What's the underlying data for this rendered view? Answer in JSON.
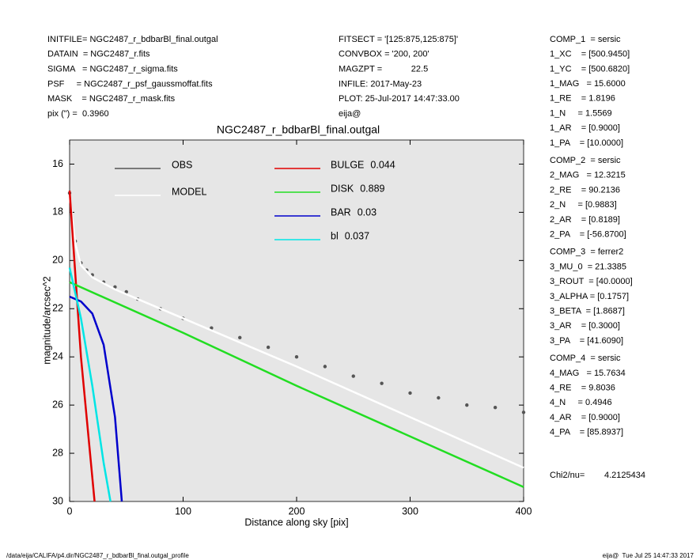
{
  "header": {
    "left": [
      "INITFILE= NGC2487_r_bdbarBl_final.outgal",
      "DATAIN  = NGC2487_r.fits",
      "SIGMA   = NGC2487_r_sigma.fits",
      "PSF     = NGC2487_r_psf_gaussmoffat.fits",
      "MASK    = NGC2487_r_mask.fits",
      "pix (\") =  0.3960"
    ],
    "middle": [
      "FITSECT = '[125:875,125:875]'",
      "CONVBOX = '200, 200'",
      "MAGZPT =            22.5",
      "INFILE: 2017-May-23",
      "PLOT: 25-Jul-2017 14:47:33.00",
      "eija@"
    ]
  },
  "params": [
    [
      "COMP_1  = sersic",
      "1_XC    = [500.9450]",
      "1_YC    = [500.6820]",
      "1_MAG   = 15.6000",
      "1_RE    = 1.8196",
      "1_N     = 1.5569",
      "1_AR    = [0.9000]",
      "1_PA    = [10.0000]"
    ],
    [
      "COMP_2  = sersic",
      "2_MAG   = 12.3215",
      "2_RE    = 90.2136",
      "2_N     = [0.9883]",
      "2_AR    = [0.8189]",
      "2_PA    = [-56.8700]"
    ],
    [
      "COMP_3  = ferrer2",
      "3_MU_0  = 21.3385",
      "3_ROUT  = [40.0000]",
      "3_ALPHA = [0.1757]",
      "3_BETA  = [1.8687]",
      "3_AR    = [0.3000]",
      "3_PA    = [41.6090]"
    ],
    [
      "COMP_4  = sersic",
      "4_MAG   = 15.7634",
      "4_RE    = 9.8036",
      "4_N     = 0.4946",
      "4_AR    = [0.9000]",
      "4_PA    = [85.8937]"
    ]
  ],
  "chi2": {
    "label": "Chi2/nu=",
    "value": "4.2125434"
  },
  "footer": {
    "left": "/data/eija/CALIFA/p4.dir/NGC2487_r_bdbarBl_final.outgal_profile",
    "right": "eija@  Tue Jul 25 14:47:33 2017"
  },
  "chart_data": {
    "type": "scatter",
    "title": "NGC2487_r_bdbarBl_final.outgal",
    "x_label": "Distance along sky [pix]",
    "y_label": "magnitude/arcsec^2",
    "xlim": [
      0,
      400
    ],
    "ylim": [
      30,
      15
    ],
    "xticks": [
      0,
      100,
      200,
      300,
      400
    ],
    "yticks": [
      16,
      18,
      20,
      22,
      24,
      26,
      28,
      30
    ],
    "background": "#e6e6e6",
    "series": [
      {
        "name": "OBS",
        "color": "#555555",
        "mode": "markers",
        "x": [
          0,
          5,
          10,
          15,
          20,
          30,
          40,
          50,
          60,
          80,
          100,
          125,
          150,
          175,
          200,
          225,
          250,
          275,
          300,
          325,
          350,
          375,
          400
        ],
        "values": [
          17.2,
          19.2,
          20.1,
          20.4,
          20.6,
          20.9,
          21.1,
          21.3,
          21.6,
          22.0,
          22.4,
          22.8,
          23.2,
          23.6,
          24.0,
          24.4,
          24.8,
          25.1,
          25.5,
          25.7,
          26.0,
          26.1,
          26.3
        ]
      },
      {
        "name": "MODEL",
        "color": "#ffffff",
        "mode": "line",
        "x": [
          0,
          5,
          10,
          20,
          40,
          60,
          100,
          200,
          300,
          400
        ],
        "values": [
          17.3,
          19.3,
          20.2,
          20.7,
          21.2,
          21.6,
          22.4,
          24.4,
          26.5,
          28.6
        ]
      },
      {
        "name": "BULGE",
        "fraction": 0.044,
        "color": "#e00000",
        "mode": "line",
        "x": [
          0,
          10,
          22
        ],
        "values": [
          17.1,
          24.0,
          30
        ]
      },
      {
        "name": "DISK",
        "fraction": 0.889,
        "color": "#22dd22",
        "mode": "line",
        "x": [
          0,
          100,
          200,
          300,
          400
        ],
        "values": [
          20.9,
          23.0,
          25.2,
          27.3,
          29.4
        ]
      },
      {
        "name": "BAR",
        "fraction": 0.03,
        "color": "#0000cc",
        "mode": "line",
        "x": [
          0,
          10,
          20,
          30,
          40,
          46
        ],
        "values": [
          21.5,
          21.7,
          22.2,
          23.5,
          26.5,
          30
        ]
      },
      {
        "name": "bl",
        "fraction": 0.037,
        "color": "#00e5e5",
        "mode": "line",
        "x": [
          0,
          10,
          20,
          30,
          36
        ],
        "values": [
          20.3,
          22.4,
          25.2,
          28.4,
          30
        ]
      }
    ]
  }
}
